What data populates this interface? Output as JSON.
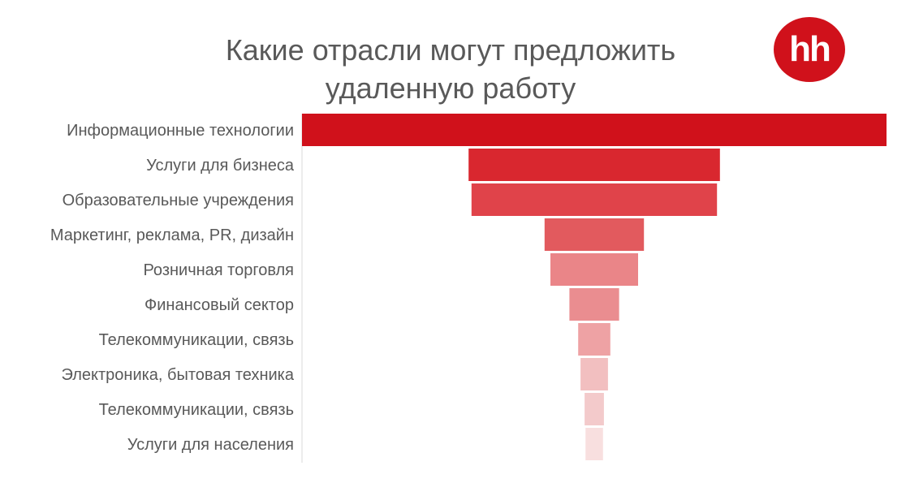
{
  "title": {
    "line1": "Какие отрасли могут предложить",
    "line2": "удаленную работу"
  },
  "logo": {
    "text": "hh",
    "color": "#d0111b"
  },
  "chart_data": {
    "type": "bar",
    "subtype": "funnel",
    "categories": [
      "Информационные технологии",
      "Услуги для бизнеса",
      "Образовательные учреждения",
      "Маркетинг, реклама, PR, дизайн",
      "Розничная торговля",
      "Финансовый сектор",
      "Телекоммуникации, связь",
      "Электроника, бытовая техника",
      "Телекоммуникации, связь",
      "Услуги для населения"
    ],
    "values": [
      100,
      43,
      42,
      17,
      15,
      8.5,
      5.5,
      4.7,
      3.3,
      3.0
    ],
    "colors": [
      "#d0111b",
      "#d9272f",
      "#e0434a",
      "#e25a5e",
      "#ea8588",
      "#ea8d90",
      "#eea2a4",
      "#f2bfc0",
      "#f3cacb",
      "#f8dfdf"
    ],
    "title": "Какие отрасли могут предложить удаленную работу",
    "xlabel": "",
    "ylabel": "",
    "grid": false,
    "legend": "none"
  }
}
